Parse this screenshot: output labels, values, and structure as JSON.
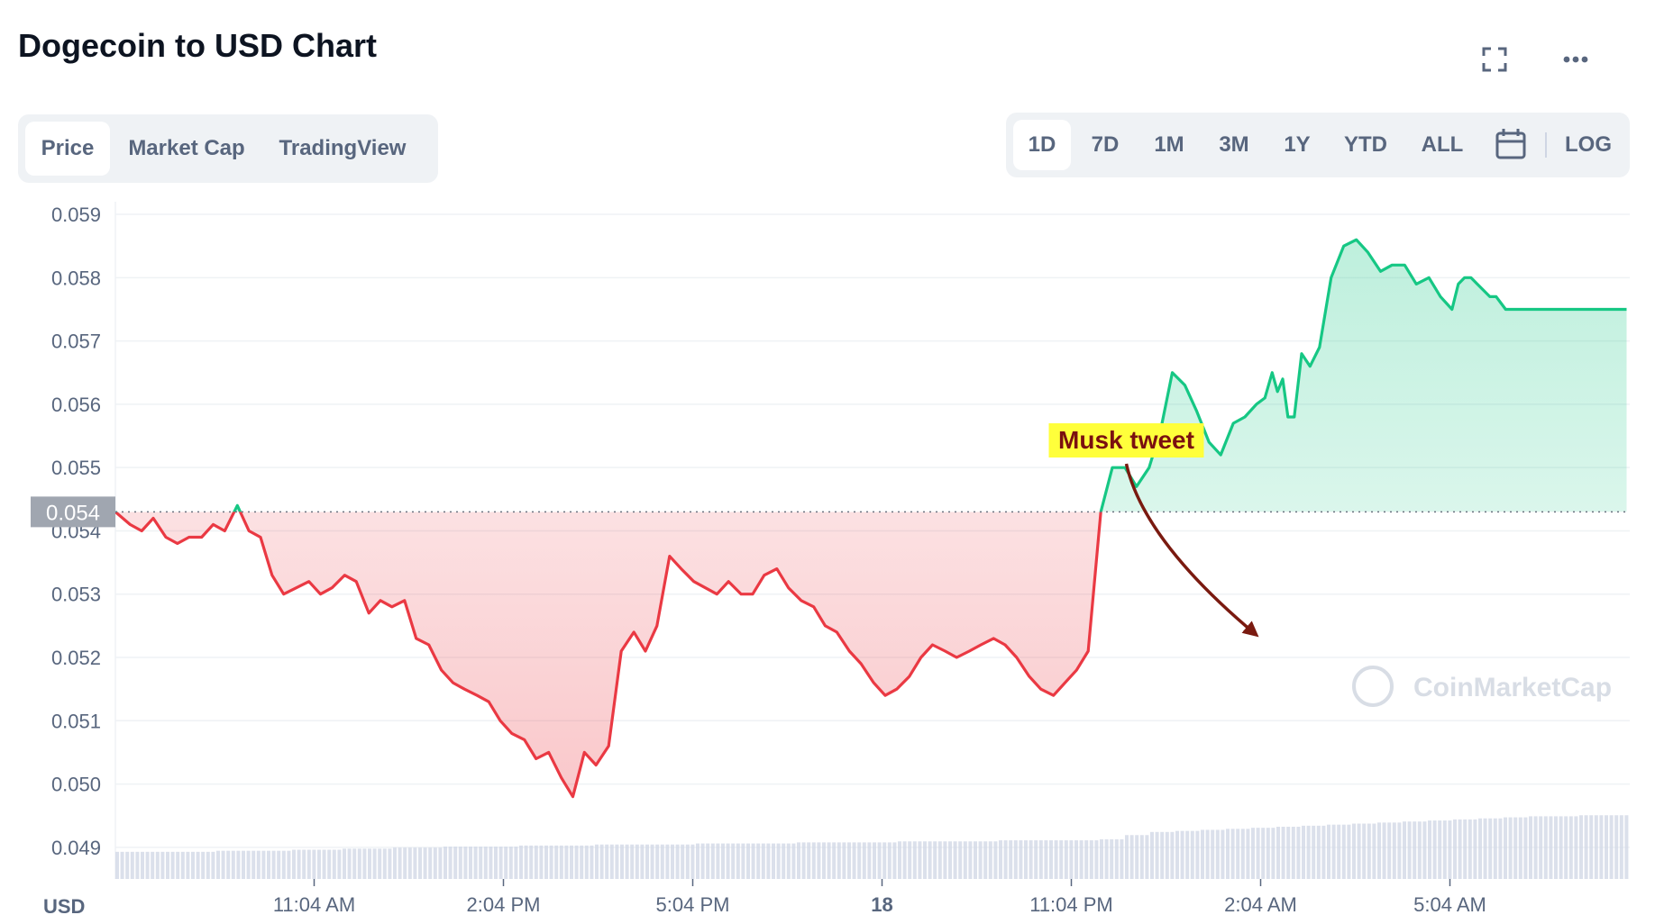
{
  "title": "Dogecoin to USD Chart",
  "header_icons": [
    "fullscreen-icon",
    "more-icon"
  ],
  "tabs": [
    {
      "label": "Price",
      "active": true
    },
    {
      "label": "Market Cap",
      "active": false
    },
    {
      "label": "TradingView",
      "active": false
    }
  ],
  "ranges": [
    {
      "label": "1D",
      "active": true
    },
    {
      "label": "7D",
      "active": false
    },
    {
      "label": "1M",
      "active": false
    },
    {
      "label": "3M",
      "active": false
    },
    {
      "label": "1Y",
      "active": false
    },
    {
      "label": "YTD",
      "active": false
    },
    {
      "label": "ALL",
      "active": false
    }
  ],
  "calendar_icon": "calendar-icon",
  "log_label": "LOG",
  "watermark": "CoinMarketCap",
  "colors": {
    "up": "#16c784",
    "down": "#ea3943",
    "up_fill": "#16c784",
    "down_fill": "#ea3943",
    "annotation_bg": "#ffff3b",
    "annotation_text": "#7a1010",
    "arrow": "#7a1a10",
    "grid": "#eff2f5",
    "axis_text": "#58667e",
    "current_badge": "#a0a6b0",
    "volume": "#cfd6e4"
  },
  "chart_data": {
    "type": "line",
    "ylabel": "USD",
    "ylim": [
      0.0485,
      0.0592
    ],
    "yticks": [
      "0.059",
      "0.058",
      "0.057",
      "0.056",
      "0.055",
      "0.054",
      "0.053",
      "0.052",
      "0.051",
      "0.050",
      "0.049"
    ],
    "ytick_values": [
      0.059,
      0.058,
      0.057,
      0.056,
      0.055,
      0.054,
      0.053,
      0.052,
      0.051,
      0.05,
      0.049
    ],
    "xticks": [
      "11:04 AM",
      "2:04 PM",
      "5:04 PM",
      "18",
      "11:04 PM",
      "2:04 AM",
      "5:04 AM"
    ],
    "xtick_minutes": [
      664,
      844,
      1024,
      1204,
      1384,
      1564,
      1744
    ],
    "x_start_minutes": 475,
    "x_end_minutes": 1915,
    "open_price": 0.0543,
    "current_price_label": "0.054",
    "current_price": 0.0543,
    "annotation": {
      "text": "Musk tweet",
      "x_minutes": 1564,
      "y": 0.0522
    },
    "series": [
      {
        "x": [
          475,
          489,
          500,
          511,
          523,
          534,
          545,
          557,
          568,
          579,
          591,
          602,
          613,
          624,
          635,
          647,
          659,
          670,
          681,
          693,
          704,
          716,
          727,
          738,
          750,
          761,
          773,
          785,
          796,
          807,
          819,
          830,
          841,
          852,
          864,
          875,
          887,
          899,
          910,
          921,
          932,
          944,
          956,
          968,
          979,
          990,
          1002,
          1013,
          1025,
          1036,
          1047,
          1058,
          1070,
          1081,
          1092,
          1104,
          1115,
          1127,
          1139,
          1150,
          1161,
          1173,
          1184,
          1196,
          1207,
          1218,
          1230,
          1241,
          1252,
          1264,
          1275,
          1287,
          1298,
          1310,
          1321,
          1332,
          1344,
          1355,
          1367,
          1378,
          1389,
          1400,
          1412,
          1423,
          1435,
          1446,
          1458,
          1469,
          1480,
          1492,
          1503,
          1515,
          1526,
          1538,
          1549,
          1560,
          1568,
          1575,
          1580,
          1585,
          1590,
          1596,
          1603,
          1611,
          1620,
          1631,
          1643,
          1655,
          1666,
          1678,
          1689,
          1701,
          1712,
          1724,
          1735,
          1746,
          1752,
          1758,
          1764,
          1770,
          1776,
          1782,
          1788,
          1797,
          1806,
          1815,
          1824,
          1834,
          1845,
          1856,
          1868,
          1879,
          1890,
          1901,
          1912
        ],
        "values": [
          0.0543,
          0.0541,
          0.054,
          0.0542,
          0.0539,
          0.0538,
          0.0539,
          0.0539,
          0.0541,
          0.054,
          0.0544,
          0.054,
          0.0539,
          0.0533,
          0.053,
          0.0531,
          0.0532,
          0.053,
          0.0531,
          0.0533,
          0.0532,
          0.0527,
          0.0529,
          0.0528,
          0.0529,
          0.0523,
          0.0522,
          0.0518,
          0.0516,
          0.0515,
          0.0514,
          0.0513,
          0.051,
          0.0508,
          0.0507,
          0.0504,
          0.0505,
          0.0501,
          0.0498,
          0.0505,
          0.0503,
          0.0506,
          0.0521,
          0.0524,
          0.0521,
          0.0525,
          0.0536,
          0.0534,
          0.0532,
          0.0531,
          0.053,
          0.0532,
          0.053,
          0.053,
          0.0533,
          0.0534,
          0.0531,
          0.0529,
          0.0528,
          0.0525,
          0.0524,
          0.0521,
          0.0519,
          0.0516,
          0.0514,
          0.0515,
          0.0517,
          0.052,
          0.0522,
          0.0521,
          0.052,
          0.0521,
          0.0522,
          0.0523,
          0.0522,
          0.052,
          0.0517,
          0.0515,
          0.0514,
          0.0516,
          0.0518,
          0.0521,
          0.0543,
          0.055,
          0.055,
          0.0547,
          0.055,
          0.0556,
          0.0565,
          0.0563,
          0.0559,
          0.0554,
          0.0552,
          0.0557,
          0.0558,
          0.056,
          0.0561,
          0.0565,
          0.0562,
          0.0564,
          0.0558,
          0.0558,
          0.0568,
          0.0566,
          0.0569,
          0.058,
          0.0585,
          0.0586,
          0.0584,
          0.0581,
          0.0582,
          0.0582,
          0.0579,
          0.058,
          0.0577,
          0.0575,
          0.0579,
          0.058,
          0.058,
          0.0579,
          0.0578,
          0.0577,
          0.0577,
          0.0575,
          0.0575,
          0.0575,
          0.0575,
          0.0575,
          0.0575,
          0.0575,
          0.0575,
          0.0575,
          0.0575,
          0.0575,
          0.0575
        ]
      }
    ],
    "volume_relative": [
      0.26,
      0.26,
      0.26,
      0.26,
      0.27,
      0.27,
      0.27,
      0.28,
      0.28,
      0.29,
      0.29,
      0.3,
      0.3,
      0.31,
      0.31,
      0.31,
      0.32,
      0.32,
      0.32,
      0.33,
      0.33,
      0.33,
      0.33,
      0.34,
      0.34,
      0.34,
      0.34,
      0.35,
      0.35,
      0.35,
      0.35,
      0.36,
      0.36,
      0.36,
      0.36,
      0.37,
      0.37,
      0.37,
      0.37,
      0.38,
      0.42,
      0.45,
      0.46,
      0.47,
      0.48,
      0.49,
      0.5,
      0.51,
      0.52,
      0.53,
      0.54,
      0.55,
      0.56,
      0.57,
      0.58,
      0.59,
      0.6,
      0.6,
      0.61,
      0.61
    ]
  }
}
